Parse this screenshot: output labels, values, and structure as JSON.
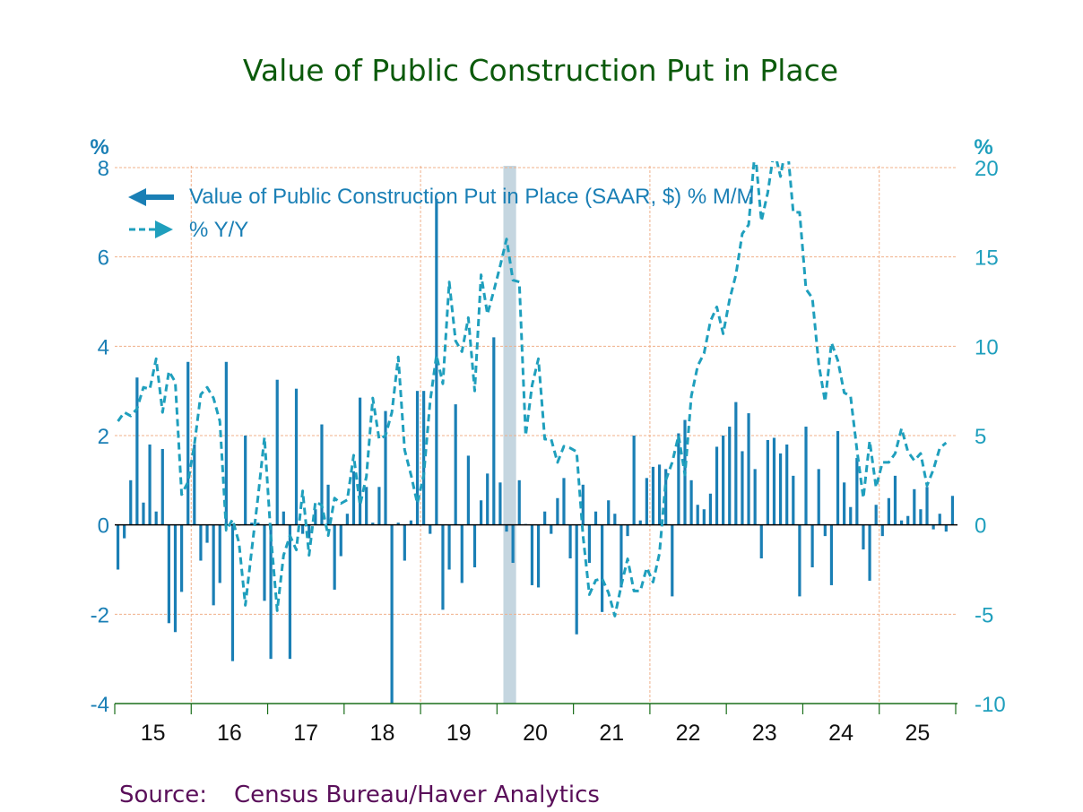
{
  "colors": {
    "title": "#0b5a0b",
    "bars": "#1a7fb5",
    "line": "#1f9fbd",
    "grid": "#f0b08a",
    "recession": "#c5d6e0",
    "axis": "#1a6e1a",
    "source": "#5a0f5a"
  },
  "chart_data": {
    "type": "bar",
    "title": "Value of Public Construction Put in Place",
    "source_label": "Source:",
    "source_text": "Census Bureau/Haver Analytics",
    "left_axis": {
      "unit": "%",
      "ylim": [
        -4,
        8
      ],
      "ticks": [
        8,
        6,
        4,
        2,
        0,
        -2,
        -4
      ]
    },
    "right_axis": {
      "unit": "%",
      "ylim": [
        -10,
        20
      ],
      "ticks": [
        20,
        15,
        10,
        5,
        0,
        -5,
        -10
      ]
    },
    "x_ticks": [
      "15",
      "16",
      "17",
      "18",
      "19",
      "20",
      "21",
      "22",
      "23",
      "24",
      "25"
    ],
    "x_start": "2015-01",
    "frequency": "monthly",
    "grid": true,
    "legend_position": "top-left",
    "recession": {
      "start": "2020-02",
      "end": "2020-04"
    },
    "series": [
      {
        "name": "Value of Public Construction Put in Place (SAAR, $)  % M/M",
        "type": "bar",
        "axis": "left",
        "values": [
          -1.0,
          -0.3,
          1.0,
          3.3,
          0.5,
          1.8,
          0.3,
          1.7,
          -2.2,
          -2.4,
          -1.5,
          3.65,
          1.8,
          -0.8,
          -0.4,
          -1.8,
          -1.3,
          3.65,
          -3.05,
          0.0,
          2.0,
          0.05,
          0.05,
          -1.7,
          -3.0,
          3.25,
          0.3,
          -3.0,
          3.05,
          -0.2,
          -0.3,
          0.35,
          2.25,
          0.9,
          -1.45,
          -0.7,
          0.25,
          1.2,
          2.85,
          0.85,
          0.05,
          0.85,
          2.55,
          -4.0,
          0.05,
          -0.8,
          0.1,
          3.0,
          3.0,
          -0.2,
          7.3,
          -1.9,
          -1.0,
          2.7,
          -1.3,
          1.55,
          -0.95,
          0.55,
          1.15,
          4.2,
          0.95,
          -0.15,
          -0.85,
          1.0,
          0.02,
          -1.35,
          -1.4,
          0.3,
          -0.2,
          0.6,
          1.05,
          -0.75,
          -2.45,
          0.9,
          -0.85,
          0.3,
          -1.95,
          0.55,
          0.25,
          -1.4,
          -0.25,
          2.0,
          0.1,
          1.05,
          1.3,
          1.35,
          1.25,
          -1.6,
          2.05,
          2.35,
          1.0,
          0.45,
          0.35,
          0.7,
          1.75,
          2.0,
          2.2,
          2.75,
          1.65,
          2.5,
          1.25,
          -0.75,
          1.9,
          1.95,
          1.6,
          1.8,
          1.1,
          -1.6,
          2.2,
          -0.95,
          1.25,
          -0.25,
          -1.35,
          2.1,
          0.95,
          0.4,
          1.5,
          -0.55,
          -1.25,
          0.45,
          -0.25,
          0.6,
          1.1,
          0.1,
          0.2,
          0.8,
          0.35,
          0.85,
          -0.1,
          0.25,
          -0.15,
          0.65
        ]
      },
      {
        "name": "% Y/Y",
        "type": "line",
        "style": "dashed",
        "axis": "right",
        "values": [
          5.8,
          6.3,
          6.1,
          6.5,
          7.7,
          7.6,
          9.3,
          6.3,
          8.6,
          8.0,
          1.7,
          2.4,
          4.5,
          7.3,
          7.7,
          7.1,
          5.8,
          -0.3,
          0.3,
          -1.0,
          -4.5,
          -1.4,
          1.6,
          4.9,
          -0.6,
          -4.8,
          -1.7,
          -0.6,
          -1.4,
          1.9,
          -1.7,
          1.3,
          1.1,
          -0.6,
          1.5,
          1.2,
          1.4,
          3.9,
          1.1,
          2.7,
          7.1,
          4.8,
          5.0,
          6.3,
          9.4,
          4.2,
          2.8,
          1.2,
          2.8,
          6.9,
          9.5,
          7.9,
          13.6,
          10.3,
          9.7,
          11.6,
          7.5,
          14.0,
          11.8,
          13.1,
          14.5,
          16.0,
          13.7,
          13.6,
          5.0,
          7.8,
          9.3,
          4.8,
          4.8,
          3.5,
          4.4,
          4.3,
          4.1,
          -0.6,
          -3.9,
          -3.1,
          -3.0,
          -3.8,
          -5.1,
          -3.4,
          -1.9,
          -3.7,
          -3.7,
          -2.4,
          -3.2,
          -1.6,
          2.5,
          3.5,
          5.0,
          2.8,
          7.2,
          8.9,
          9.6,
          11.4,
          12.2,
          10.7,
          12.6,
          14.0,
          16.3,
          16.8,
          21.0,
          17.0,
          18.6,
          21.0,
          19.5,
          21.5,
          17.5,
          17.5,
          13.2,
          12.7,
          9.0,
          6.9,
          10.2,
          9.2,
          7.4,
          7.2,
          4.2,
          1.5,
          4.7,
          2.1,
          3.5,
          3.5,
          4.0,
          5.4,
          4.1,
          3.6,
          4.0,
          2.2,
          3.1,
          4.3,
          4.6
        ]
      }
    ]
  }
}
